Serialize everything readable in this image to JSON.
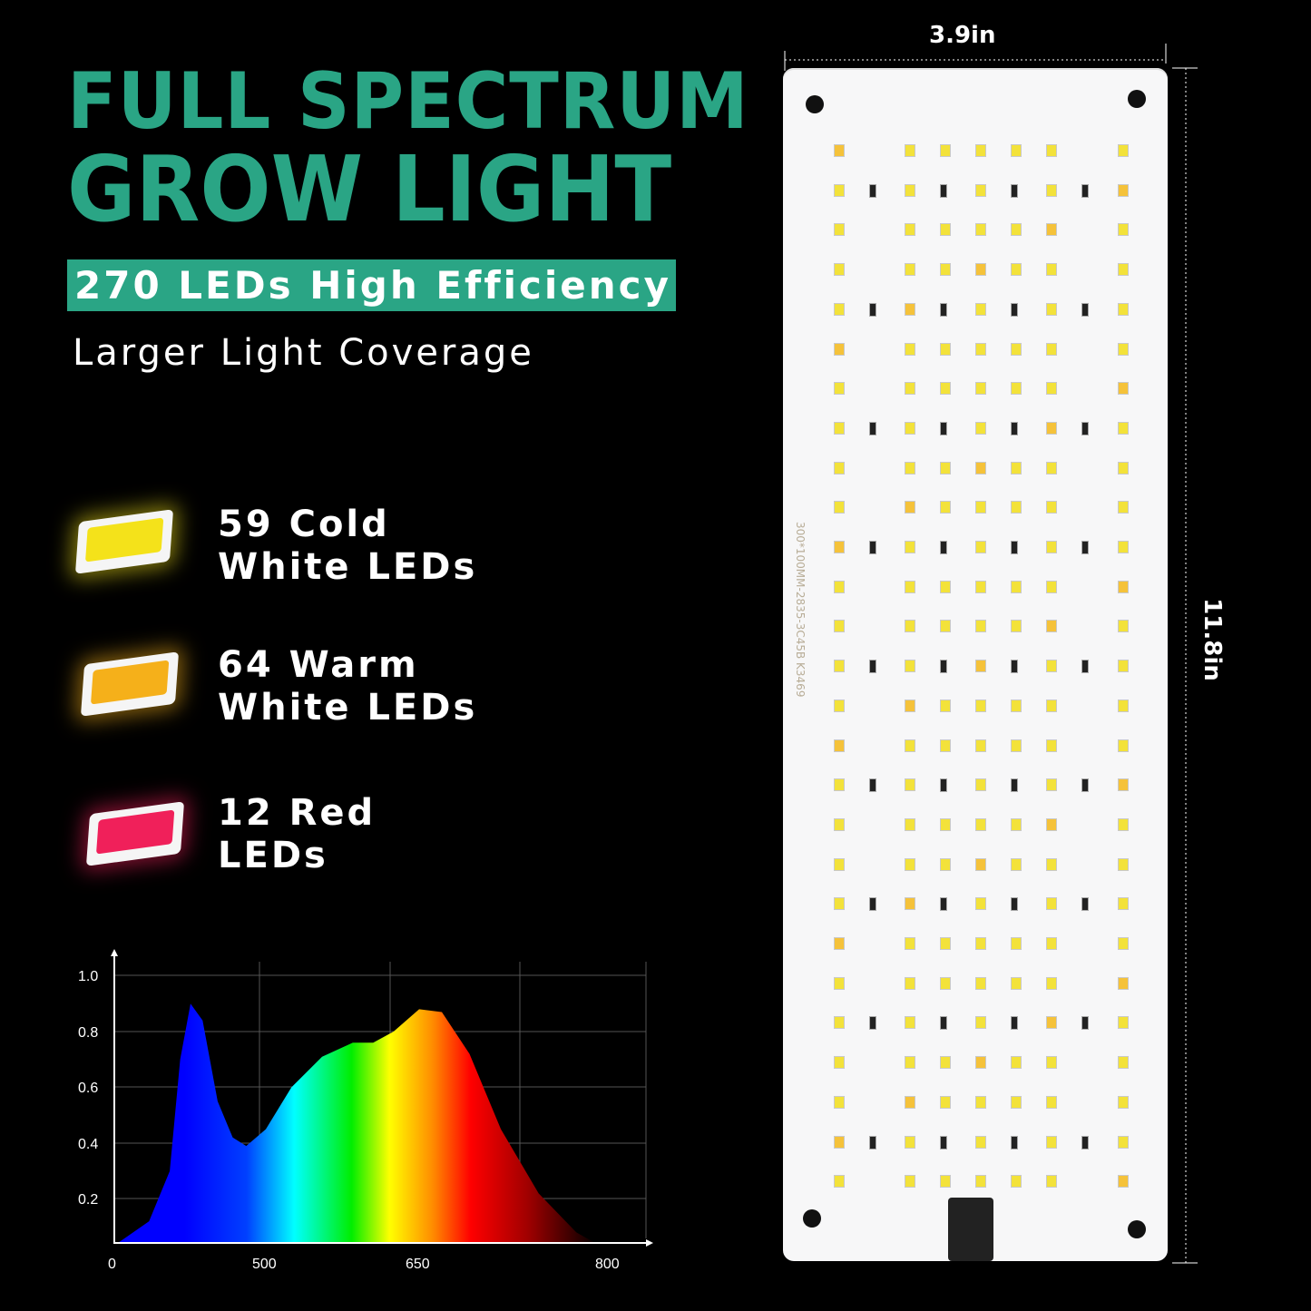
{
  "headline": {
    "line1": "FULL SPECTRUM",
    "line2": "GROW LIGHT",
    "badge": "270 LEDs High Efficiency",
    "subtitle": "Larger Light Coverage"
  },
  "leds": [
    {
      "line1": "59 Cold",
      "line2": "White LEDs",
      "color": "#f4e21a"
    },
    {
      "line1": "64 Warm",
      "line2": "White LEDs",
      "color": "#f5b01a"
    },
    {
      "line1": "12 Red",
      "line2": "LEDs",
      "color": "#f0205a"
    }
  ],
  "board": {
    "width_label": "3.9in",
    "height_label": "11.8in",
    "silkscreen": "300*100MM-2835-3C45B K3469"
  },
  "colors": {
    "accent": "#2aa585"
  },
  "chart_data": {
    "type": "area",
    "x_ticks": [
      "0",
      "500",
      "650",
      "800"
    ],
    "y_ticks": [
      "1.0",
      "0.8",
      "0.6",
      "0.4",
      "0.2"
    ],
    "ylim": [
      0,
      1.0
    ],
    "grid": true,
    "fill": "visible-spectrum gradient",
    "points": [
      [
        380,
        0.04
      ],
      [
        410,
        0.12
      ],
      [
        430,
        0.3
      ],
      [
        440,
        0.7
      ],
      [
        450,
        0.9
      ],
      [
        458,
        0.84
      ],
      [
        468,
        0.55
      ],
      [
        478,
        0.42
      ],
      [
        487,
        0.39
      ],
      [
        500,
        0.45
      ],
      [
        525,
        0.6
      ],
      [
        555,
        0.71
      ],
      [
        585,
        0.76
      ],
      [
        605,
        0.76
      ],
      [
        625,
        0.8
      ],
      [
        650,
        0.88
      ],
      [
        668,
        0.87
      ],
      [
        690,
        0.72
      ],
      [
        715,
        0.45
      ],
      [
        745,
        0.22
      ],
      [
        775,
        0.08
      ],
      [
        790,
        0.04
      ]
    ]
  }
}
